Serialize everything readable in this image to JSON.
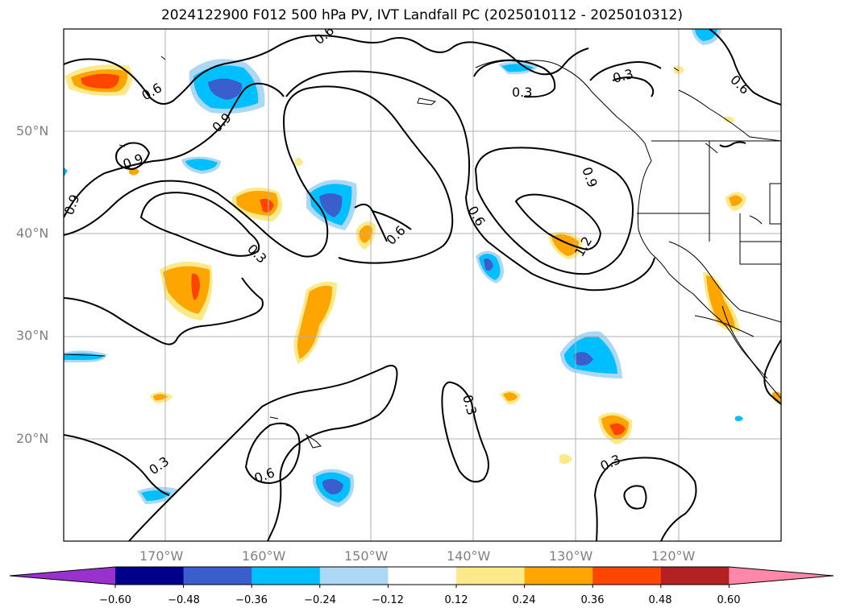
{
  "title": "2024122900 F012 500 hPa PV, IVT Landfall PC (2025010112 - 2025010312)",
  "lat_labels": [
    "50°N",
    "40°N",
    "30°N",
    "20°N"
  ],
  "lon_labels": [
    "170°W",
    "160°W",
    "150°W",
    "140°W",
    "130°W",
    "120°W"
  ],
  "contour_labels": [
    "0.6",
    "0.9",
    "0.9",
    "0.9",
    "0.3",
    "0.6",
    "0.6",
    "0.9",
    "1.2",
    "0.3",
    "0.3",
    "0.6",
    "0.3",
    "0.6",
    "0.3",
    "0.3",
    "0.6"
  ],
  "colorbar": {
    "ticks": [
      "−0.60",
      "−0.48",
      "−0.36",
      "−0.24",
      "−0.12",
      "0.12",
      "0.24",
      "0.36",
      "0.48",
      "0.60"
    ],
    "colors": [
      "#9932cc",
      "#00008b",
      "#3a5fcd",
      "#00bfff",
      "#add8f5",
      "#ffffff",
      "#fce98a",
      "#ffa500",
      "#ff4500",
      "#b22222",
      "#ff88aa"
    ]
  }
}
